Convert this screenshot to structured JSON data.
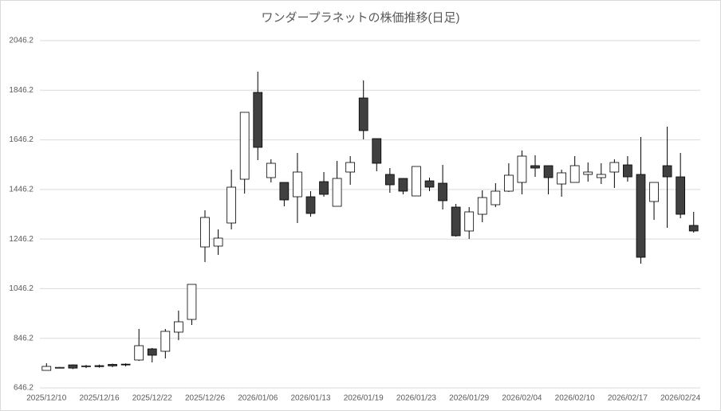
{
  "chart_data": {
    "type": "candlestick",
    "title": "ワンダープラネットの株価推移(日足)",
    "categories": [
      "2025/12/10",
      null,
      null,
      null,
      "2025/12/16",
      null,
      null,
      null,
      "2025/12/22",
      null,
      null,
      null,
      "2025/12/26",
      null,
      null,
      null,
      "2026/01/06",
      null,
      null,
      null,
      "2026/01/13",
      null,
      null,
      null,
      "2026/01/19",
      null,
      null,
      null,
      "2026/01/23",
      null,
      null,
      null,
      "2026/01/29",
      null,
      null,
      null,
      "2026/02/04",
      null,
      null,
      null,
      "2026/02/10",
      null,
      null,
      null,
      "2026/02/17",
      null,
      null,
      null,
      "2026/02/24",
      null
    ],
    "open": [
      716.8,
      727,
      739,
      732,
      736,
      741,
      742,
      758.6,
      803.5,
      793.9,
      871,
      922.3,
      1214.5,
      1217.8,
      1310.9,
      1487.5,
      1837.5,
      1493.9,
      1474.6,
      1416.8,
      1416.8,
      1477.8,
      1378.3,
      1516.4,
      1815,
      1651.2,
      1506.8,
      1490.7,
      1420,
      1481,
      1471.4,
      1375.1,
      1278.8,
      1346.2,
      1384.7,
      1439.3,
      1474.6,
      1542.1,
      1542.1,
      1468.2,
      1474.6,
      1506.8,
      1493.9,
      1516.4,
      1545.3,
      1506.8,
      1397.6,
      1542.1,
      1497,
      1301.2
    ],
    "high": [
      745.7,
      731,
      741,
      739,
      740,
      744,
      745,
      883.8,
      807,
      883.8,
      957.7,
      1063.6,
      1362.3,
      1285.2,
      1526,
      1757.2,
      1921,
      1567.8,
      1474.6,
      1593.4,
      1439.3,
      1516.4,
      1561.3,
      1580.6,
      1885.7,
      1651.2,
      1532.4,
      1490.7,
      1538.9,
      1493.9,
      1545.3,
      1388,
      1375.1,
      1442.5,
      1471.4,
      1551.7,
      1603.1,
      1583.8,
      1542.1,
      1526,
      1580.6,
      1554.9,
      1551.7,
      1567.8,
      1580.6,
      1657.7,
      1474.6,
      1699.4,
      1593.4,
      1355.8
    ],
    "low": [
      716.8,
      725,
      722,
      726,
      728,
      730,
      733,
      755,
      749,
      765,
      838.9,
      899.9,
      1153.5,
      1182.4,
      1285.2,
      1429.7,
      1564.5,
      1474.6,
      1378.3,
      1310.9,
      1336.6,
      1416.8,
      1378.3,
      1465,
      1648,
      1519.6,
      1432.9,
      1426.5,
      1420,
      1439.3,
      1365.5,
      1256.3,
      1246.7,
      1314.1,
      1375.1,
      1436.1,
      1426.5,
      1497,
      1426.5,
      1416.8,
      1474.6,
      1477.8,
      1468.2,
      1452.2,
      1477.8,
      1147.1,
      1323.7,
      1291.6,
      1330.1,
      1272.3
    ],
    "close": [
      732.9,
      729,
      726,
      735,
      732,
      735,
      739,
      816.4,
      777.9,
      874.2,
      912.7,
      1063.6,
      1333.4,
      1249.9,
      1455.4,
      1757.2,
      1615.9,
      1551.7,
      1404,
      1516.4,
      1349.4,
      1426.5,
      1490.7,
      1554.9,
      1683.4,
      1551.7,
      1465,
      1439.3,
      1538.9,
      1455.4,
      1400.8,
      1259.5,
      1355.8,
      1413.6,
      1439.3,
      1503.6,
      1580.6,
      1532.4,
      1493.9,
      1513.2,
      1542.1,
      1516.4,
      1506.8,
      1554.9,
      1497,
      1172.8,
      1474.6,
      1497,
      1346.2,
      1278.8
    ],
    "up_color": "#ffffff",
    "down_color": "#404040",
    "line_color": "#000000",
    "ylim": [
      646.2,
      2046.2
    ],
    "yticks": [
      646.2,
      846.2,
      1046.2,
      1246.2,
      1446.2,
      1646.2,
      1846.2,
      2046.2
    ],
    "grid": true
  }
}
